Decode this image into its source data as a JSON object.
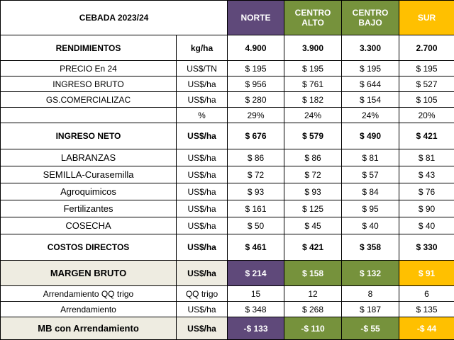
{
  "header": {
    "title": "CEBADA 2023/24",
    "regions": [
      "NORTE",
      "CENTRO\nALTO",
      "CENTRO\nBAJO",
      "SUR"
    ]
  },
  "rows": [
    {
      "label": "RENDIMIENTOS",
      "unit": "kg/ha",
      "values": [
        "4.900",
        "3.900",
        "3.300",
        "2.700"
      ]
    },
    {
      "label": "PRECIO   En 24",
      "unit": "US$/TN",
      "values": [
        "$ 195",
        "$ 195",
        "$ 195",
        "$ 195"
      ]
    },
    {
      "label": "INGRESO BRUTO",
      "unit": "US$/ha",
      "values": [
        "$ 956",
        "$ 761",
        "$ 644",
        "$ 527"
      ]
    },
    {
      "label": "GS.COMERCIALIZAC",
      "unit": "US$/ha",
      "values": [
        "$ 280",
        "$ 182",
        "$ 154",
        "$ 105"
      ]
    },
    {
      "label": "",
      "unit": "%",
      "values": [
        "29%",
        "24%",
        "24%",
        "20%"
      ]
    },
    {
      "label": "INGRESO NETO",
      "unit": "US$/ha",
      "values": [
        "$ 676",
        "$ 579",
        "$ 490",
        "$ 421"
      ]
    },
    {
      "label": "LABRANZAS",
      "unit": "US$/ha",
      "values": [
        "$ 86",
        "$ 86",
        "$ 81",
        "$ 81"
      ]
    },
    {
      "label": "SEMILLA-Curasemilla",
      "unit": "US$/ha",
      "values": [
        "$ 72",
        "$ 72",
        "$ 57",
        "$ 43"
      ]
    },
    {
      "label": "Agroquimicos",
      "unit": "US$/ha",
      "values": [
        "$ 93",
        "$ 93",
        "$ 84",
        "$ 76"
      ]
    },
    {
      "label": "Fertilizantes",
      "unit": "US$/ha",
      "values": [
        "$ 161",
        "$ 125",
        "$ 95",
        "$ 90"
      ]
    },
    {
      "label": "COSECHA",
      "unit": "US$/ha",
      "values": [
        "$ 50",
        "$ 45",
        "$ 40",
        "$ 40"
      ]
    },
    {
      "label": "COSTOS DIRECTOS",
      "unit": "US$/ha",
      "values": [
        "$ 461",
        "$ 421",
        "$ 358",
        "$ 330"
      ]
    },
    {
      "label": "MARGEN BRUTO",
      "unit": "US$/ha",
      "values": [
        "$ 214",
        "$ 158",
        "$ 132",
        "$ 91"
      ]
    },
    {
      "label": "Arrendamiento QQ trigo",
      "unit": "QQ trigo",
      "values": [
        "15",
        "12",
        "8",
        "6"
      ]
    },
    {
      "label": "Arrendamiento",
      "unit": "US$/ha",
      "values": [
        "$ 348",
        "$ 268",
        "$ 187",
        "$ 135"
      ]
    },
    {
      "label": "MB con Arrendamiento",
      "unit": "US$/ha",
      "values": [
        "-$ 133",
        "-$ 110",
        "-$ 55",
        "-$ 44"
      ]
    }
  ],
  "colors": {
    "norte": "#5f497a",
    "centro": "#76923c",
    "sur": "#ffc000",
    "beige": "#eeece1"
  }
}
